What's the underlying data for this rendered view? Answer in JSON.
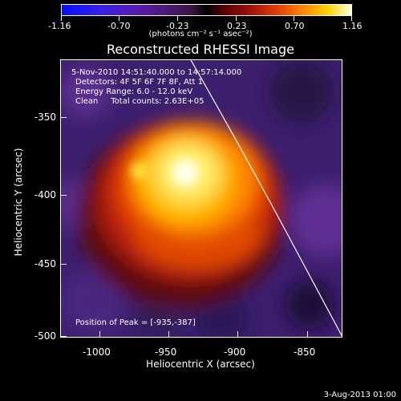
{
  "colorbar": {
    "ticks": [
      "-1.16",
      "-0.70",
      "-0.23",
      "0.23",
      "0.70",
      "1.16"
    ],
    "unit": "(photons cm⁻² s⁻¹ asec⁻²)",
    "colors": [
      "#0010ff",
      "#5a1aa8",
      "#000000",
      "#a01008",
      "#ff8c00",
      "#ffffe0"
    ]
  },
  "title": "Reconstructed RHESSI Image",
  "info": {
    "line1": "5-Nov-2010 14:51:40.000 to 14:57:14.000",
    "line2": "Detectors: 4F 5F 6F 7F 8F, Att 1",
    "line3": "Energy Range: 6.0 - 12.0 keV",
    "line4": "Clean     Total counts: 2.63E+05",
    "peak": "Position of Peak = [-935,-387]"
  },
  "axes": {
    "xlabel": "Heliocentric X (arcsec)",
    "ylabel": "Heliocentric Y (arcsec)",
    "xticks": [
      "-1000",
      "-950",
      "-900",
      "-850"
    ],
    "yticks": [
      "-350",
      "-400",
      "-450",
      "-500"
    ]
  },
  "footer": {
    "date": "3-Aug-2013 01:00"
  }
}
